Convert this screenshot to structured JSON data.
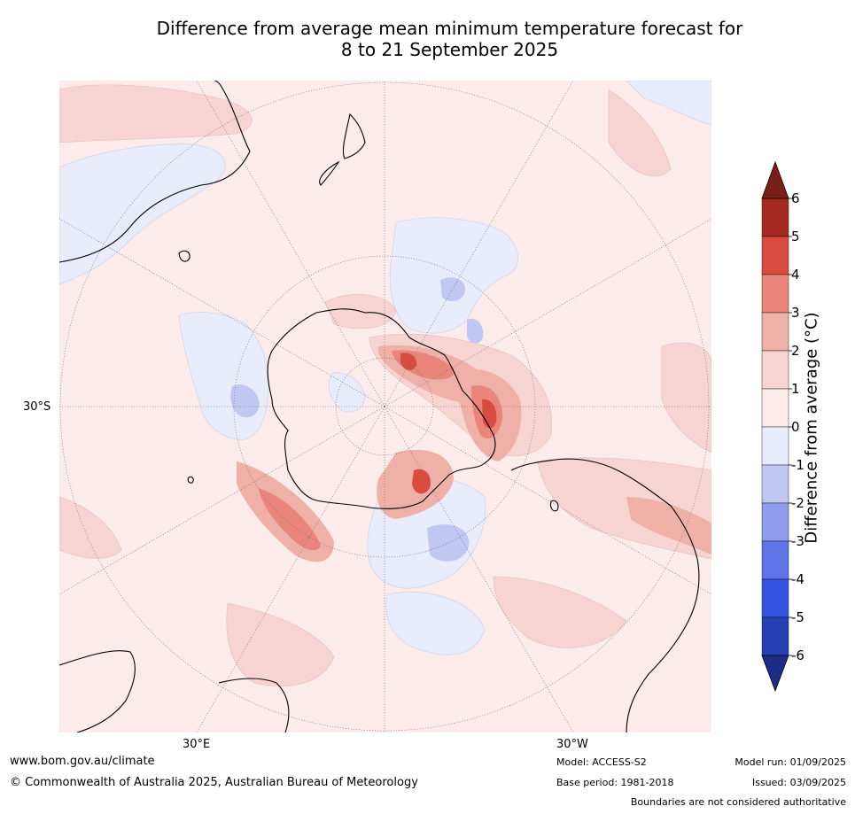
{
  "title": {
    "line1": "Difference from average mean minimum temperature forecast for",
    "line2": "8 to 21 September 2025"
  },
  "map": {
    "projection": "south-polar-stereographic",
    "labels": {
      "lat_30s": "30°S",
      "lon_30e": "30°E",
      "lon_30w": "30°W"
    },
    "background_color": "#fbeceb"
  },
  "colorbar": {
    "title": "Difference from average (°C)",
    "ticks": [
      "6",
      "5",
      "4",
      "3",
      "2",
      "1",
      "0",
      "-1",
      "-2",
      "-3",
      "-4",
      "-5",
      "-6"
    ],
    "colors_top_to_bottom": [
      "#a52a22",
      "#d94c3f",
      "#e9857a",
      "#efb0a8",
      "#f5d4d1",
      "#fbeceb",
      "#e8ecfb",
      "#c0c7f3",
      "#8e9cee",
      "#5e74e6",
      "#3552e0",
      "#2640b4"
    ],
    "extend_max_color": "#7a1f18",
    "extend_min_color": "#1f2c85"
  },
  "footer": {
    "website": "www.bom.gov.au/climate",
    "copyright": "© Commonwealth of Australia 2025, Australian Bureau of Meteorology",
    "model": "Model: ACCESS-S2",
    "base_period": "Base period: 1981-2018",
    "model_run": "Model run: 01/09/2025",
    "issued": "Issued: 03/09/2025",
    "disclaimer": "Boundaries are not considered authoritative"
  }
}
